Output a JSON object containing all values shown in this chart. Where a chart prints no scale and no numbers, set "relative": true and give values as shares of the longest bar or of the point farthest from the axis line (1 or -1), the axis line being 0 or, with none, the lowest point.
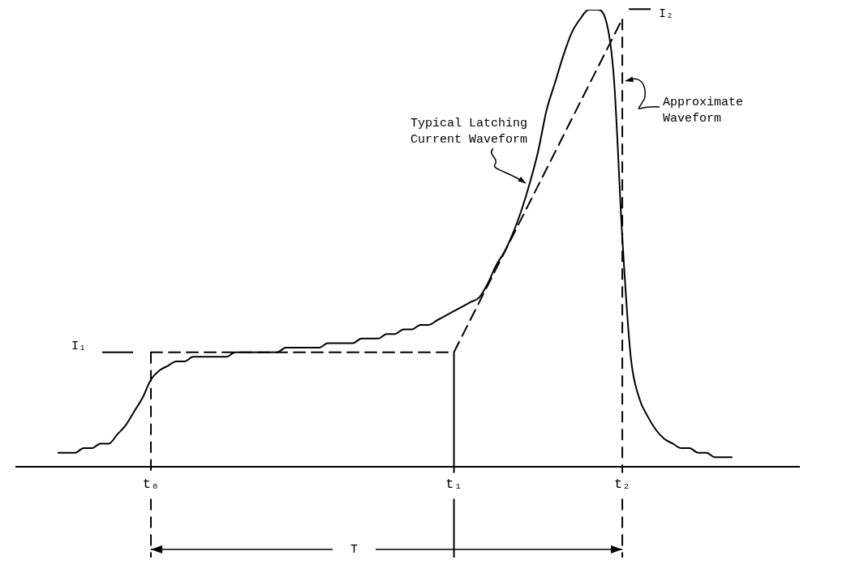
{
  "chart_data": {
    "type": "line",
    "relative": true,
    "legend": false,
    "grid": false,
    "tick_labels": "x",
    "marker": "none",
    "categories": [
      null,
      null,
      null,
      null,
      null,
      null,
      null,
      null,
      null,
      null,
      null,
      null,
      null,
      null,
      null,
      null,
      "t₀",
      null,
      null,
      null,
      null,
      null,
      null,
      null,
      null,
      null,
      null,
      null,
      null,
      null,
      null,
      null,
      null,
      null,
      null,
      null,
      null,
      null,
      null,
      null,
      null,
      null,
      null,
      null,
      null,
      null,
      null,
      null,
      null,
      null,
      null,
      null,
      "t₁",
      null,
      null,
      null,
      null,
      null,
      null,
      null,
      null,
      null,
      null,
      null,
      null,
      null,
      null,
      null,
      null,
      null,
      null,
      null,
      "t₂",
      null,
      null,
      null,
      null,
      null,
      null,
      null,
      null,
      null,
      null,
      null,
      null,
      null,
      null,
      null,
      null,
      null,
      null,
      null,
      null,
      null
    ],
    "series": [
      {
        "name": "Typical Latching Current Waveform",
        "color": "#000000",
        "line_style": "solid",
        "values": [
          null,
          null,
          null,
          null,
          null,
          0.03,
          0.03,
          0.03,
          0.04,
          0.04,
          0.05,
          0.05,
          0.07,
          0.09,
          0.12,
          0.15,
          0.19,
          0.21,
          0.22,
          0.23,
          0.23,
          0.24,
          0.24,
          0.24,
          0.24,
          0.24,
          0.25,
          0.25,
          0.25,
          0.25,
          0.25,
          0.25,
          0.26,
          0.26,
          0.26,
          0.26,
          0.26,
          0.27,
          0.27,
          0.27,
          0.27,
          0.28,
          0.28,
          0.28,
          0.29,
          0.29,
          0.3,
          0.3,
          0.31,
          0.31,
          0.32,
          0.33,
          0.34,
          0.35,
          0.36,
          0.37,
          0.4,
          0.44,
          0.47,
          0.51,
          0.56,
          0.62,
          0.69,
          0.78,
          0.84,
          0.9,
          0.95,
          0.98,
          1,
          1,
          0.98,
          0.85,
          0.5,
          0.24,
          0.15,
          0.11,
          0.08,
          0.06,
          0.05,
          0.04,
          0.04,
          0.03,
          0.03,
          0.02,
          0.02,
          0.02,
          null,
          null,
          null,
          null,
          null,
          null,
          null,
          null
        ]
      },
      {
        "name": "Approximate Waveform",
        "color": "#000000",
        "line_style": "dashed",
        "values": [
          null,
          null,
          null,
          null,
          null,
          null,
          null,
          null,
          null,
          null,
          null,
          null,
          null,
          null,
          null,
          null,
          0.25,
          null,
          null,
          null,
          null,
          null,
          null,
          null,
          null,
          null,
          null,
          null,
          null,
          null,
          null,
          null,
          null,
          null,
          null,
          null,
          null,
          null,
          null,
          null,
          null,
          null,
          null,
          null,
          null,
          null,
          null,
          null,
          null,
          null,
          null,
          null,
          0.25,
          null,
          null,
          null,
          null,
          null,
          null,
          null,
          null,
          null,
          null,
          null,
          null,
          null,
          null,
          null,
          null,
          null,
          null,
          null,
          0.98,
          null,
          null,
          null,
          null,
          null,
          null,
          null,
          null,
          null,
          null,
          null,
          null,
          null,
          null,
          null,
          null,
          null,
          null,
          null,
          null,
          null
        ]
      }
    ],
    "ref_lines": [
      {
        "axis": "x",
        "value": "t₀",
        "line_style": "dashed",
        "color": "#000000"
      },
      {
        "axis": "x",
        "value": "t₁",
        "line_style": "solid",
        "color": "#000000"
      },
      {
        "axis": "x",
        "value": "t₂",
        "line_style": "dashed",
        "color": "#000000"
      }
    ],
    "annotations": [
      "I₁",
      "I₂",
      "T"
    ]
  }
}
